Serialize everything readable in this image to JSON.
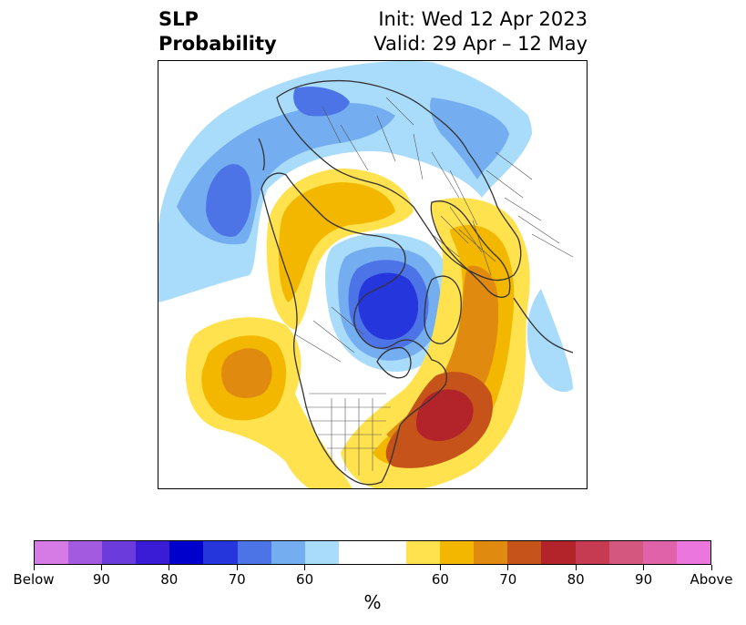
{
  "header": {
    "title_line1": "SLP",
    "title_line2": "Probability",
    "init": "Init: Wed 12 Apr 2023",
    "valid": "Valid: 29 Apr – 12 May"
  },
  "colorbar": {
    "colors": [
      "#d67ae6",
      "#a35ae0",
      "#6b3bdc",
      "#3a1bd6",
      "#0000cc",
      "#2537dc",
      "#4d74e6",
      "#74aef0",
      "#a9dcfb",
      "#ffffff",
      "#ffffff",
      "#ffe24d",
      "#f3b700",
      "#e08a10",
      "#c65319",
      "#b2242a",
      "#c63b52",
      "#d4577f",
      "#e062a8",
      "#ea76de"
    ],
    "ticks": [
      "Below",
      "90",
      "80",
      "70",
      "60",
      "60",
      "70",
      "80",
      "90",
      "Above"
    ],
    "unit": "%"
  },
  "map": {
    "colors": {
      "blue_light": "#a9dcfb",
      "blue_mid": "#74aef0",
      "blue_med": "#4d74e6",
      "blue_deep": "#2537dc",
      "yellow": "#ffe24d",
      "gold": "#f3b700",
      "orange": "#e08a10",
      "rust": "#c65319",
      "red": "#b2242a",
      "coast": "#333333",
      "border": "#555555"
    }
  }
}
